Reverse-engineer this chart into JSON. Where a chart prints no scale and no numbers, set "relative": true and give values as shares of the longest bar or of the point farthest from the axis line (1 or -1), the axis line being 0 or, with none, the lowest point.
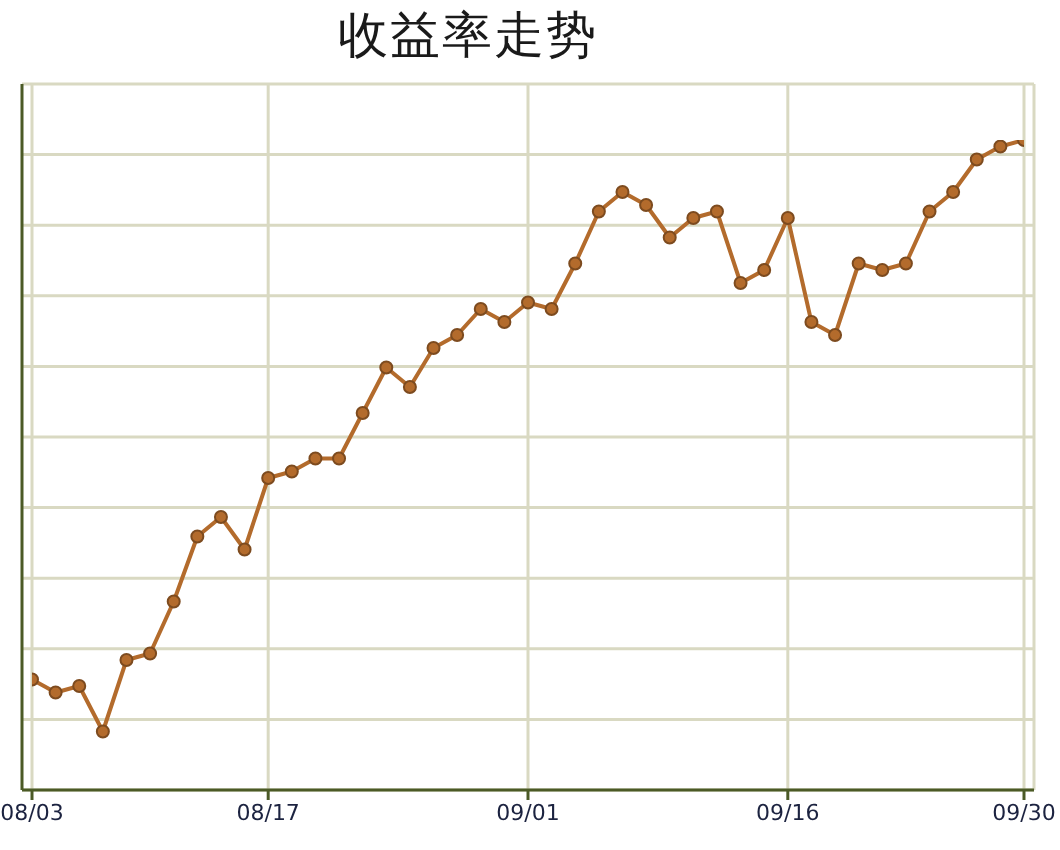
{
  "chart_data": {
    "type": "line",
    "title": "收益率走势",
    "categories": [
      "08/03",
      null,
      null,
      null,
      null,
      null,
      null,
      null,
      null,
      null,
      "08/17",
      null,
      null,
      null,
      null,
      null,
      null,
      null,
      null,
      null,
      null,
      "09/01",
      null,
      null,
      null,
      null,
      null,
      null,
      null,
      null,
      null,
      null,
      "09/16",
      null,
      null,
      null,
      null,
      null,
      null,
      null,
      null,
      null,
      "09/30"
    ],
    "relative": true,
    "series": [
      {
        "color": "#b36b2c",
        "values": [
          0.17,
          0.15,
          0.16,
          0.09,
          0.2,
          0.21,
          0.29,
          0.39,
          0.42,
          0.37,
          0.48,
          0.49,
          0.51,
          0.51,
          0.58,
          0.65,
          0.62,
          0.68,
          0.7,
          0.74,
          0.72,
          0.75,
          0.74,
          0.81,
          0.89,
          0.92,
          0.9,
          0.85,
          0.88,
          0.89,
          0.78,
          0.8,
          0.88,
          0.72,
          0.7,
          0.81,
          0.8,
          0.81,
          0.89,
          0.92,
          0.97,
          0.99,
          1
        ]
      }
    ],
    "grid": true,
    "marker": "circle",
    "line_style": "solid"
  }
}
